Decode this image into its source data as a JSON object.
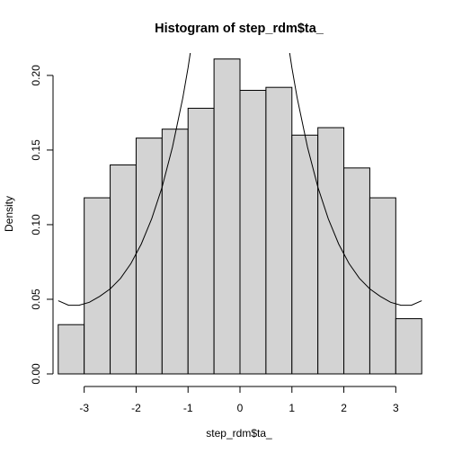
{
  "chart_data": {
    "type": "bar",
    "title": "Histogram of step_rdm$ta_",
    "xlabel": "step_rdm$ta_",
    "ylabel": "Density",
    "xlim": [
      -3.6,
      3.6
    ],
    "ylim": [
      0,
      0.215
    ],
    "x_ticks": [
      -3,
      -2,
      -1,
      0,
      1,
      2,
      3
    ],
    "x_tick_labels": [
      "-3",
      "-2",
      "-1",
      "0",
      "1",
      "2",
      "3"
    ],
    "y_ticks": [
      0,
      0.05,
      0.1,
      0.15,
      0.2
    ],
    "y_tick_labels": [
      "0.00",
      "0.05",
      "0.10",
      "0.15",
      "0.20"
    ],
    "bins": [
      {
        "from": -3.5,
        "to": -3.0,
        "density": 0.033
      },
      {
        "from": -3.0,
        "to": -2.5,
        "density": 0.118
      },
      {
        "from": -2.5,
        "to": -2.0,
        "density": 0.14
      },
      {
        "from": -2.0,
        "to": -1.5,
        "density": 0.158
      },
      {
        "from": -1.5,
        "to": -1.0,
        "density": 0.164
      },
      {
        "from": -1.0,
        "to": -0.5,
        "density": 0.178
      },
      {
        "from": -0.5,
        "to": 0.0,
        "density": 0.211
      },
      {
        "from": 0.0,
        "to": 0.5,
        "density": 0.19
      },
      {
        "from": 0.5,
        "to": 1.0,
        "density": 0.192
      },
      {
        "from": 1.0,
        "to": 1.5,
        "density": 0.16
      },
      {
        "from": 1.5,
        "to": 2.0,
        "density": 0.165
      },
      {
        "from": 2.0,
        "to": 2.5,
        "density": 0.138
      },
      {
        "from": 2.5,
        "to": 3.0,
        "density": 0.118
      },
      {
        "from": 3.0,
        "to": 3.5,
        "density": 0.037
      }
    ],
    "curve": {
      "x": [
        -3.5,
        -3.3,
        -3.1,
        -2.9,
        -2.7,
        -2.5,
        -2.3,
        -2.1,
        -1.9,
        -1.7,
        -1.5,
        -1.3,
        -1.1,
        -1.0,
        -0.9,
        -0.85,
        0.85,
        0.9,
        1.0,
        1.1,
        1.3,
        1.5,
        1.7,
        1.9,
        2.1,
        2.3,
        2.5,
        2.7,
        2.9,
        3.1,
        3.3,
        3.5
      ],
      "y": [
        0.049,
        0.046,
        0.046,
        0.048,
        0.052,
        0.057,
        0.064,
        0.074,
        0.087,
        0.104,
        0.125,
        0.152,
        0.185,
        0.205,
        0.228,
        0.24,
        0.24,
        0.228,
        0.205,
        0.185,
        0.152,
        0.125,
        0.104,
        0.087,
        0.074,
        0.064,
        0.057,
        0.052,
        0.048,
        0.046,
        0.046,
        0.049
      ]
    },
    "grid": false,
    "legend": "none"
  }
}
